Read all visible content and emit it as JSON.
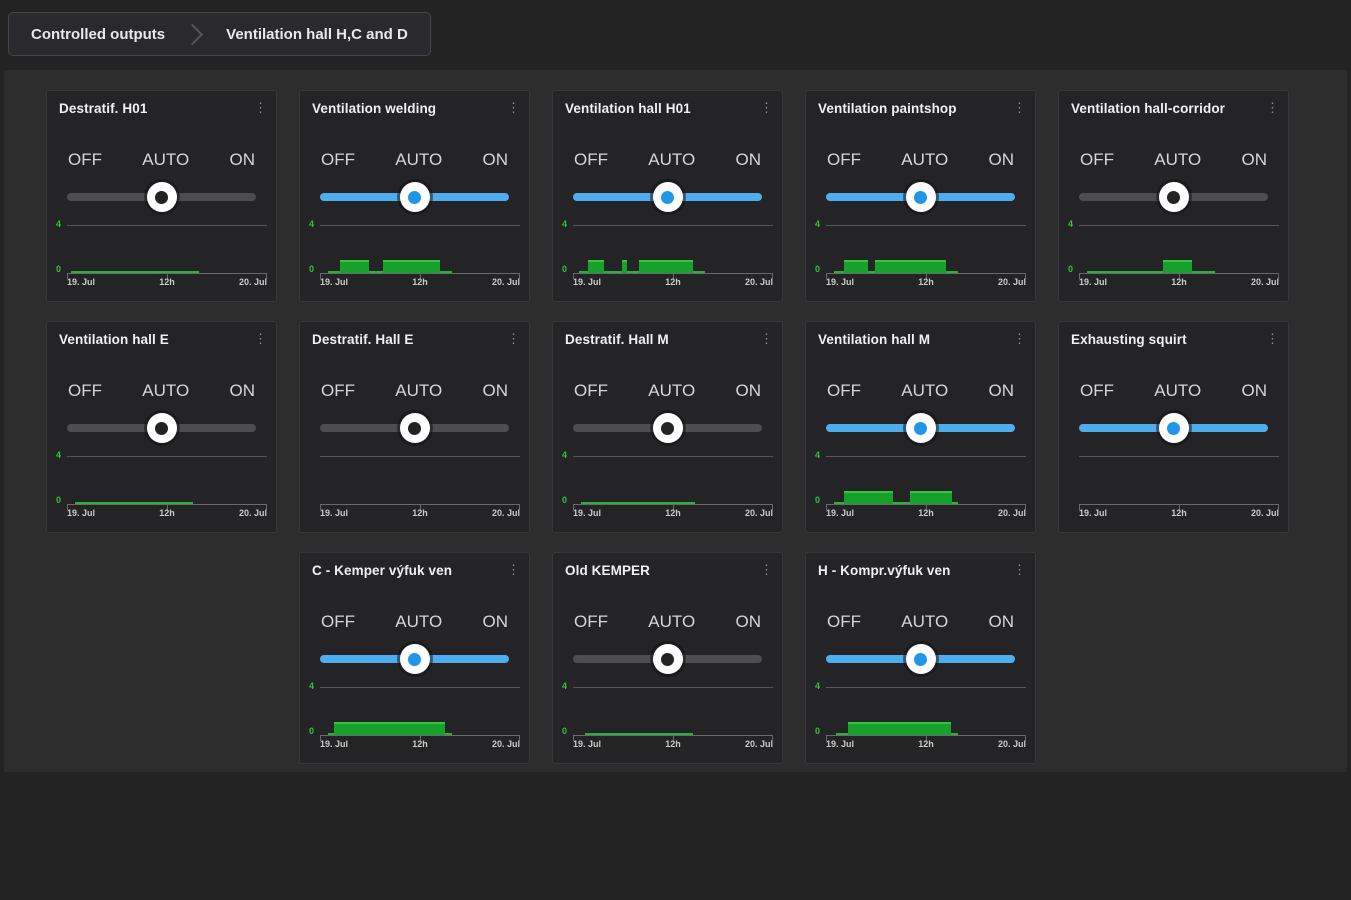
{
  "breadcrumb": {
    "items": [
      "Controlled outputs",
      "Ventilation hall H,C and D"
    ]
  },
  "switch": {
    "labels": [
      "OFF",
      "AUTO",
      "ON"
    ]
  },
  "chart_axis": {
    "y_max_label": "4",
    "y_zero_label": "0",
    "x_ticks": [
      "19. Jul",
      "12h",
      "20. Jul"
    ],
    "pulse_value": 1,
    "y_range": [
      0,
      4
    ]
  },
  "icons": {
    "kebab_menu": "⋮",
    "breadcrumb_chevron": "chevron-right"
  },
  "colors": {
    "page_bg": "#232324",
    "panel_bg": "#2d2d2e",
    "card_bg": "#242427",
    "slider_active": "#4fadee",
    "slider_inactive": "#4d4d50",
    "thumb_dot_active": "#1f97e6",
    "thumb_dot_inactive": "#232325",
    "chart_green": "#27b335"
  },
  "cards": [
    {
      "title": "Destratif. H01",
      "switch_state": "AUTO",
      "active": false,
      "has_data": true,
      "zero_segments": [
        [
          0.02,
          0.66
        ]
      ],
      "pulses": []
    },
    {
      "title": "Ventilation welding",
      "switch_state": "AUTO",
      "active": true,
      "has_data": true,
      "zero_segments": [
        [
          0.04,
          0.66
        ]
      ],
      "pulses": [
        [
          0.1,
          0.245
        ],
        [
          0.315,
          0.6
        ]
      ]
    },
    {
      "title": "Ventilation hall H01",
      "switch_state": "AUTO",
      "active": true,
      "has_data": true,
      "zero_segments": [
        [
          0.03,
          0.66
        ]
      ],
      "pulses": [
        [
          0.075,
          0.155
        ],
        [
          0.245,
          0.27
        ],
        [
          0.33,
          0.6
        ]
      ]
    },
    {
      "title": "Ventilation paintshop",
      "switch_state": "AUTO",
      "active": true,
      "has_data": true,
      "zero_segments": [
        [
          0.04,
          0.66
        ]
      ],
      "pulses": [
        [
          0.09,
          0.21
        ],
        [
          0.245,
          0.6
        ]
      ]
    },
    {
      "title": "Ventilation hall-corridor",
      "switch_state": "AUTO",
      "active": false,
      "has_data": true,
      "zero_segments": [
        [
          0.04,
          0.68
        ]
      ],
      "pulses": [
        [
          0.42,
          0.565
        ]
      ]
    },
    {
      "title": "Ventilation hall E",
      "switch_state": "AUTO",
      "active": false,
      "has_data": true,
      "zero_segments": [
        [
          0.04,
          0.63
        ]
      ],
      "pulses": []
    },
    {
      "title": "Destratif. Hall E",
      "switch_state": "AUTO",
      "active": false,
      "has_data": false,
      "zero_segments": [],
      "pulses": []
    },
    {
      "title": "Destratif. Hall M",
      "switch_state": "AUTO",
      "active": false,
      "has_data": true,
      "zero_segments": [
        [
          0.04,
          0.61
        ]
      ],
      "pulses": []
    },
    {
      "title": "Ventilation hall M",
      "switch_state": "AUTO",
      "active": true,
      "has_data": true,
      "zero_segments": [
        [
          0.04,
          0.66
        ]
      ],
      "pulses": [
        [
          0.09,
          0.335
        ],
        [
          0.42,
          0.63
        ]
      ]
    },
    {
      "title": "Exhausting squirt",
      "switch_state": "AUTO",
      "active": true,
      "has_data": false,
      "zero_segments": [],
      "pulses": []
    },
    {
      "title": "C - Kemper výfuk ven",
      "switch_state": "AUTO",
      "active": true,
      "has_data": true,
      "zero_segments": [
        [
          0.04,
          0.66
        ]
      ],
      "pulses": [
        [
          0.07,
          0.625
        ]
      ]
    },
    {
      "title": "Old KEMPER",
      "switch_state": "AUTO",
      "active": false,
      "has_data": true,
      "zero_segments": [
        [
          0.06,
          0.6
        ]
      ],
      "pulses": []
    },
    {
      "title": "H - Kompr.výfuk ven",
      "switch_state": "AUTO",
      "active": true,
      "has_data": true,
      "zero_segments": [
        [
          0.05,
          0.66
        ]
      ],
      "pulses": [
        [
          0.11,
          0.625
        ]
      ]
    }
  ]
}
